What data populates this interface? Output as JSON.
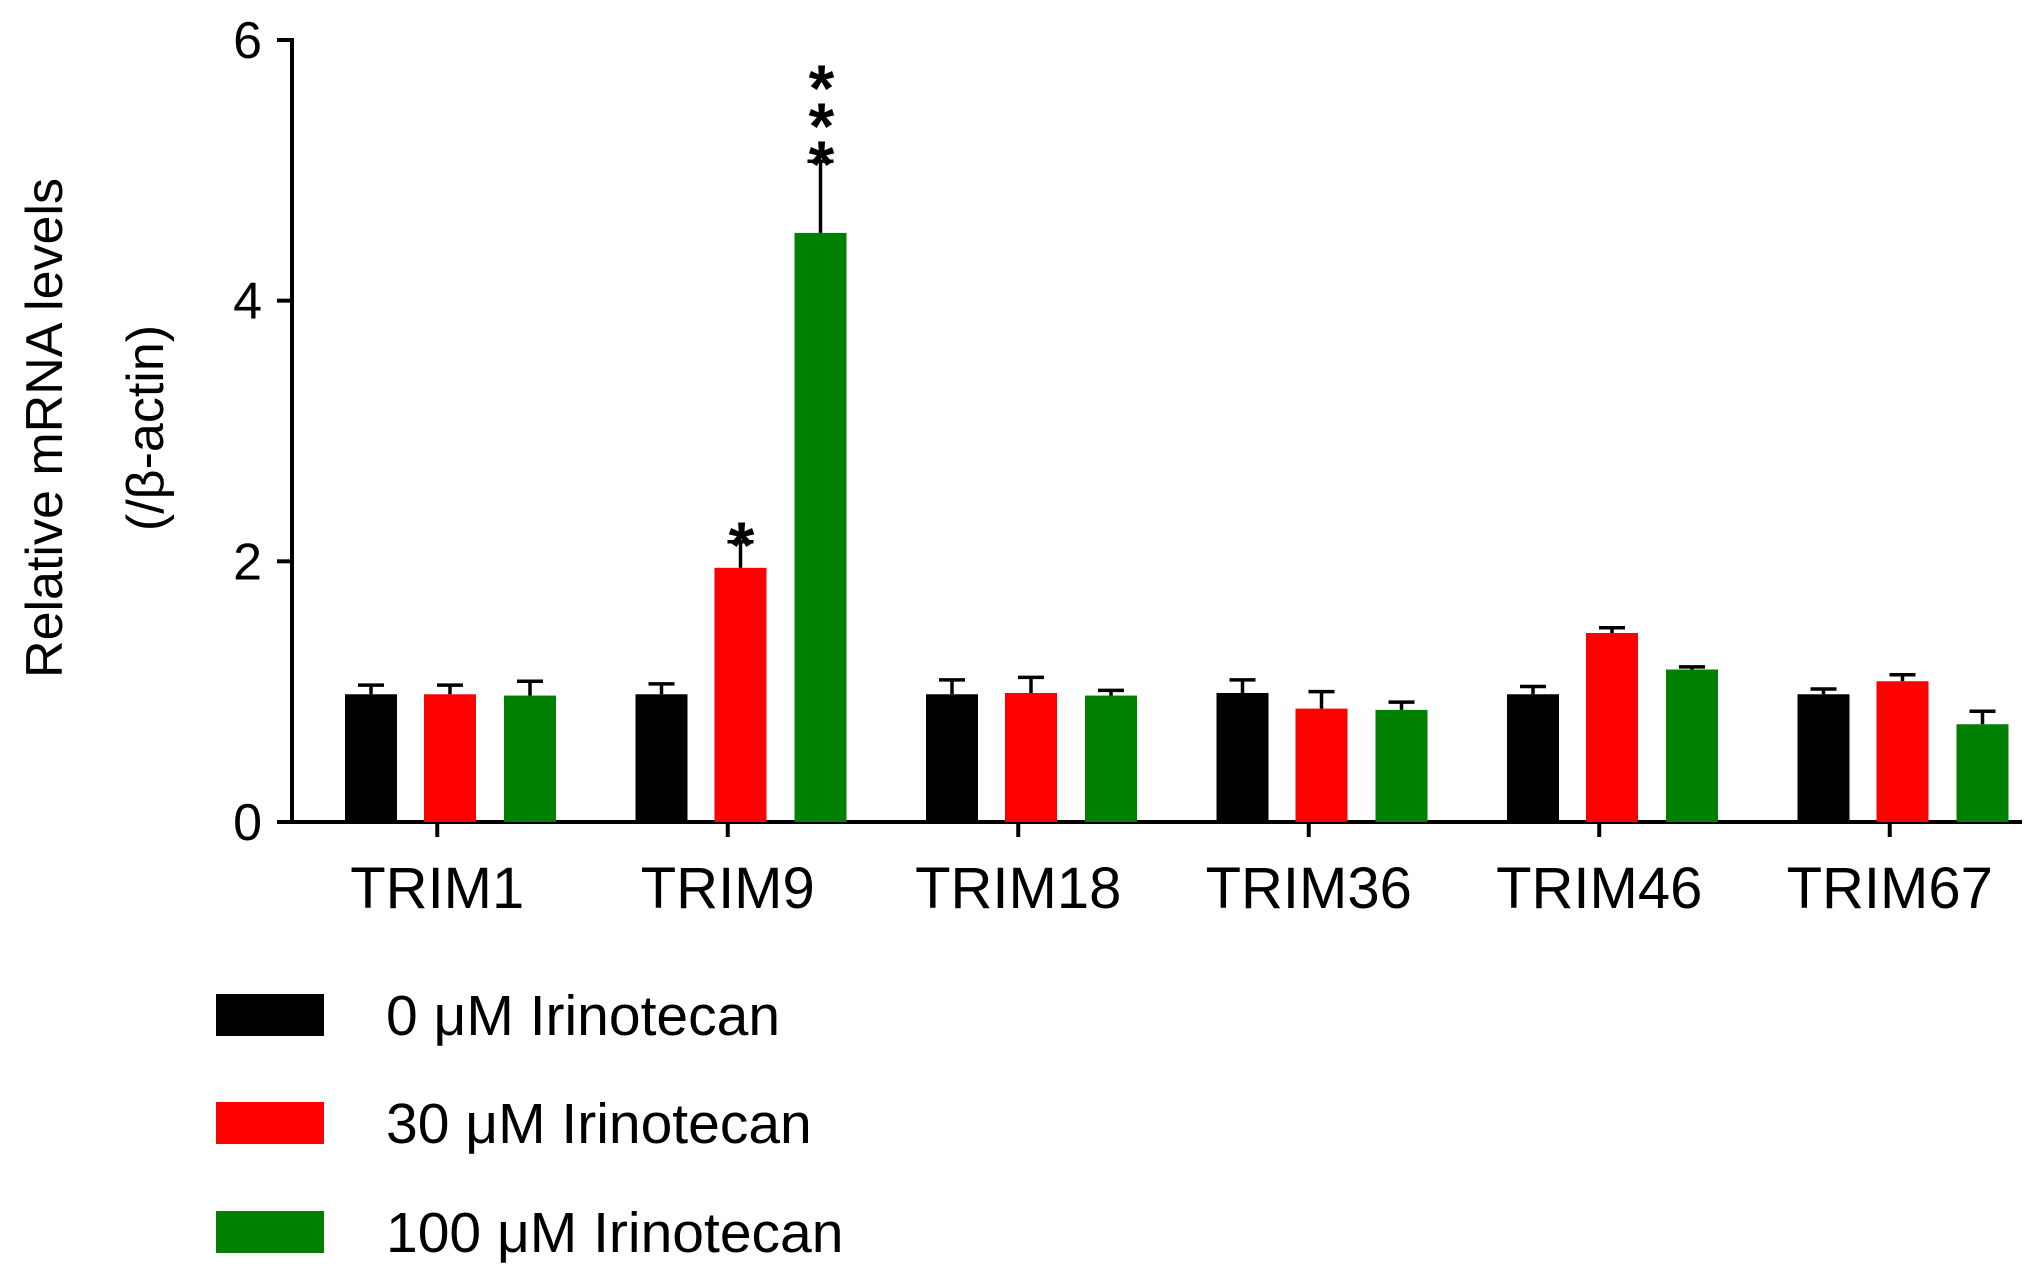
{
  "chart_data": {
    "type": "bar",
    "title": "",
    "xlabel": "",
    "ylabel": "Relative mRNA levels",
    "ylabel_line2": "(/β-actin)",
    "ylim": [
      0,
      6
    ],
    "yticks": [
      0,
      2,
      4,
      6
    ],
    "grid": false,
    "legend_position": "bottom-left",
    "categories": [
      "TRIM1",
      "TRIM9",
      "TRIM18",
      "TRIM36",
      "TRIM46",
      "TRIM67"
    ],
    "series": [
      {
        "name": "0 μM Irinotecan",
        "color": "#000000",
        "values": [
          0.98,
          0.98,
          0.98,
          0.99,
          0.98,
          0.98
        ],
        "errors": [
          0.07,
          0.08,
          0.11,
          0.1,
          0.06,
          0.04
        ],
        "significance": [
          "",
          "",
          "",
          "",
          "",
          ""
        ]
      },
      {
        "name": "30 μM Irinotecan",
        "color": "#ff0000",
        "values": [
          0.98,
          1.95,
          0.99,
          0.87,
          1.45,
          1.08
        ],
        "errors": [
          0.07,
          0.2,
          0.12,
          0.13,
          0.04,
          0.05
        ],
        "significance": [
          "",
          "*",
          "",
          "",
          "",
          ""
        ]
      },
      {
        "name": "100 μM Irinotecan",
        "color": "#008000",
        "values": [
          0.97,
          4.52,
          0.97,
          0.86,
          1.17,
          0.75
        ],
        "errors": [
          0.11,
          0.55,
          0.04,
          0.06,
          0.02,
          0.1
        ],
        "significance": [
          "",
          "***",
          "",
          "",
          "",
          ""
        ]
      }
    ]
  }
}
